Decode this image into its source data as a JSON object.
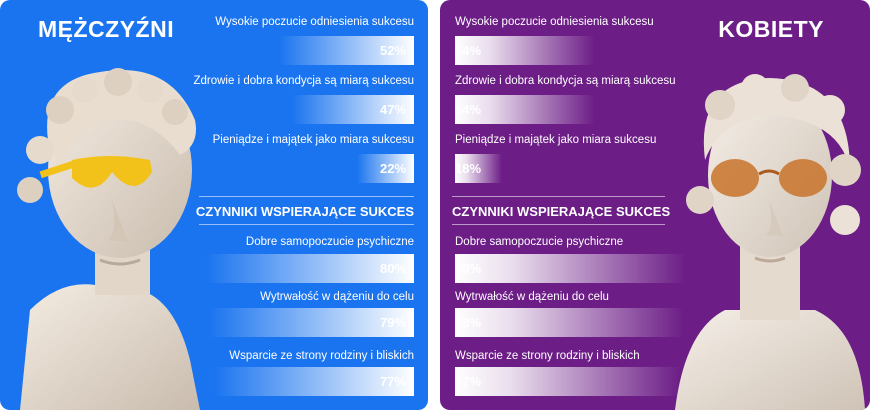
{
  "chart_data": [
    {
      "type": "bar",
      "title": "MĘŻCZYŹNI",
      "groups": [
        {
          "heading": "",
          "categories": [
            "Wysokie poczucie odniesienia sukcesu",
            "Zdrowie i dobra kondycja są miarą sukcesu",
            "Pieniądze i majątek jako miara sukcesu"
          ],
          "values": [
            52,
            47,
            22
          ],
          "labels": [
            "52%",
            "47%",
            "22%"
          ]
        },
        {
          "heading": "CZYNNIKI WSPIERAJĄCE SUKCES",
          "categories": [
            "Dobre samopoczucie psychiczne",
            "Wytrwałość w dążeniu do celu",
            "Wsparcie ze strony rodziny i bliskich"
          ],
          "values": [
            80,
            79,
            77
          ],
          "labels": [
            "80%",
            "79%",
            "77%"
          ]
        }
      ],
      "ylim": [
        0,
        100
      ]
    },
    {
      "type": "bar",
      "title": "KOBIETY",
      "groups": [
        {
          "heading": "",
          "categories": [
            "Wysokie poczucie odniesienia sukcesu",
            "Zdrowie i dobra kondycja są miarą sukcesu",
            "Pieniądze i majątek jako miara sukcesu"
          ],
          "values": [
            54,
            54,
            18
          ],
          "labels": [
            "54%",
            "54%",
            "18%"
          ]
        },
        {
          "heading": "CZYNNIKI WSPIERAJĄCE SUKCES",
          "categories": [
            "Dobre samopoczucie psychiczne",
            "Wytrwałość w dążeniu do celu",
            "Wsparcie ze strony rodziny i bliskich"
          ],
          "values": [
            89,
            88,
            87
          ],
          "labels": [
            "89%",
            "88%",
            "87%"
          ]
        }
      ],
      "ylim": [
        0,
        100
      ]
    }
  ],
  "colors": {
    "men_bg": "#1a74ef",
    "women_bg": "#6c1d86",
    "men_sunglasses": "#f2c21b",
    "women_sunglasses": "#c8732a"
  }
}
